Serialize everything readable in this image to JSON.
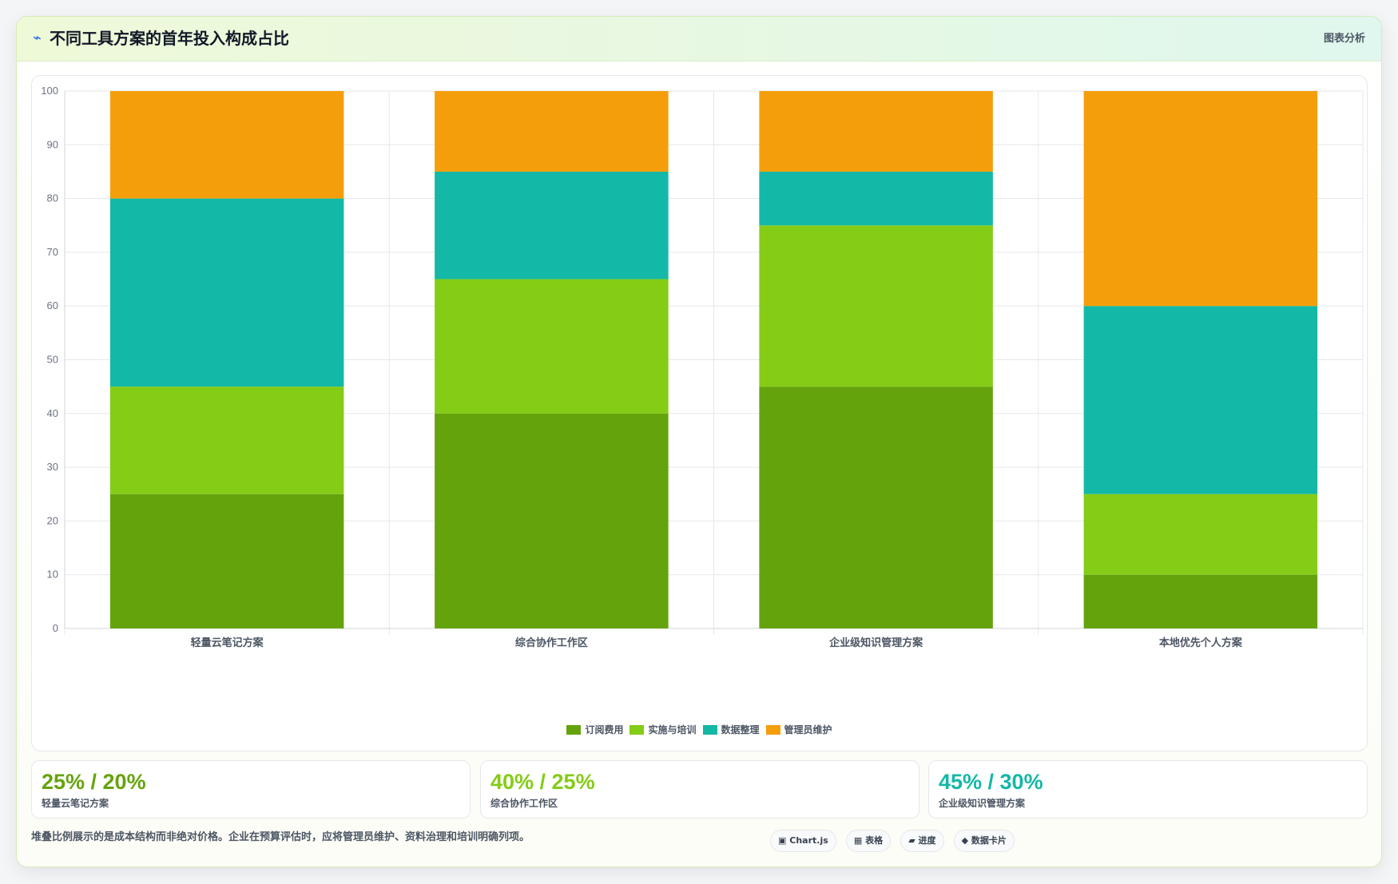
{
  "header": {
    "icon": "⌁",
    "title": "不同工具方案的首年投入构成占比",
    "right_label": "图表分析"
  },
  "colors": {
    "subscription": "#65a30d",
    "implementation": "#84cc16",
    "data": "#14b8a6",
    "admin": "#f59e0b"
  },
  "chart_data": {
    "type": "bar",
    "stacked": true,
    "title": "",
    "xlabel": "",
    "ylabel": "",
    "ylim": [
      0,
      100
    ],
    "yticks": [
      0,
      10,
      20,
      30,
      40,
      50,
      60,
      70,
      80,
      90,
      100
    ],
    "grid": true,
    "legend_position": "bottom",
    "categories": [
      "轻量云笔记方案",
      "综合协作工作区",
      "企业级知识管理方案",
      "本地优先个人方案"
    ],
    "series": [
      {
        "name": "订阅费用",
        "color": "#65a30d",
        "values": [
          25,
          40,
          45,
          10
        ]
      },
      {
        "name": "实施与培训",
        "color": "#84cc16",
        "values": [
          20,
          25,
          30,
          15
        ]
      },
      {
        "name": "数据整理",
        "color": "#14b8a6",
        "values": [
          35,
          20,
          10,
          35
        ]
      },
      {
        "name": "管理员维护",
        "color": "#f59e0b",
        "values": [
          20,
          15,
          15,
          40
        ]
      }
    ]
  },
  "stats": [
    {
      "value": "25% / 20%",
      "label": "轻量云笔记方案",
      "color": "#65a30d"
    },
    {
      "value": "40% / 25%",
      "label": "综合协作工作区",
      "color": "#84cc16"
    },
    {
      "value": "45% / 30%",
      "label": "企业级知识管理方案",
      "color": "#14b8a6"
    }
  ],
  "footnote": "堆叠比例展示的是成本结构而非绝对价格。企业在预算评估时，应将管理员维护、资料治理和培训明确列项。",
  "chips": [
    {
      "icon": "▣",
      "label": "Chart.js"
    },
    {
      "icon": "▦",
      "label": "表格"
    },
    {
      "icon": "▰",
      "label": "进度"
    },
    {
      "icon": "◆",
      "label": "数据卡片"
    }
  ]
}
